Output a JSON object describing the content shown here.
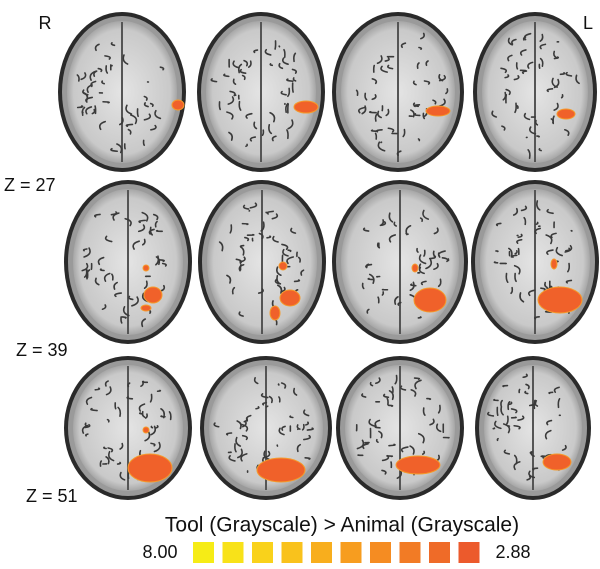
{
  "figure": {
    "orientation": {
      "right": "R",
      "left": "L"
    },
    "rows": [
      {
        "label": "Z = 27"
      },
      {
        "label": "Z = 39"
      },
      {
        "label": "Z = 51"
      }
    ],
    "legend": {
      "title": "Tool (Grayscale) > Animal (Grayscale)",
      "max_label": "8.00",
      "min_label": "2.88",
      "colors": [
        "#f6ec16",
        "#f8e219",
        "#f9d21b",
        "#f9c21c",
        "#f8ae1d",
        "#f79d1f",
        "#f58c22",
        "#f27b25",
        "#ef6b28",
        "#ec5a2c"
      ]
    }
  }
}
